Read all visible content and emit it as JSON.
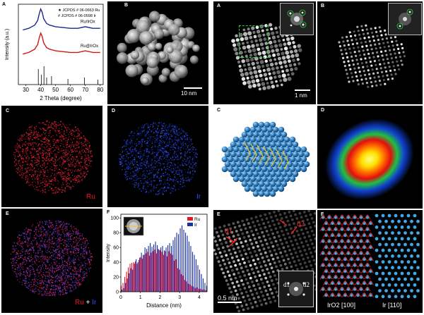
{
  "left": {
    "panelA": {
      "label": "A",
      "ylabel": "Intensity (a.u.)",
      "xlabel": "2 Theta (degree)",
      "legend_ru": "★ JCPDS # 06-0663 Ru",
      "legend_ir": "# JCPDS # 06-0598 Ir",
      "curve_top_label": "Ru/IrOx",
      "curve_bottom_label": "Ru@IrOx",
      "xticks": [
        "30",
        "40",
        "50",
        "60",
        "70",
        "80"
      ]
    },
    "panelB": {
      "label": "B",
      "scale": "10 nm"
    },
    "panelC": {
      "label": "C",
      "element": "Ru"
    },
    "panelD": {
      "label": "D",
      "element": "Ir"
    },
    "panelE": {
      "label": "E",
      "element_ru": "Ru",
      "plus": "+",
      "element_ir": "Ir"
    },
    "panelF": {
      "label": "F",
      "ylabel": "Intensity",
      "xlabel": "Distance (nm)",
      "legend": [
        "Ru",
        "Ir"
      ],
      "yticks": [
        "0",
        "20",
        "40",
        "60",
        "80",
        "100"
      ],
      "xticks": [
        "0",
        "1",
        "2",
        "3",
        "4"
      ]
    }
  },
  "right": {
    "panelA": {
      "label": "A",
      "scale": "1 nm"
    },
    "panelB": {
      "label": "B"
    },
    "panelC": {
      "label": "C"
    },
    "panelD": {
      "label": "D"
    },
    "panelE": {
      "label": "E",
      "d1": "d1",
      "d2": "d2",
      "scale": "0.5 nm",
      "inset_d1": "d1",
      "inset_d2": "d2"
    },
    "panelF": {
      "label": "F",
      "caption_left": "IrO2  [100]",
      "caption_right": "Ir  [110]"
    }
  },
  "chart_data": [
    {
      "type": "line",
      "title": "",
      "xlabel": "2 Theta (degree)",
      "ylabel": "Intensity (a.u.)",
      "xlim": [
        25,
        82
      ],
      "series": [
        {
          "name": "Ru/IrOx",
          "color": "#1a2a8a",
          "x": [
            28,
            32,
            36,
            38,
            39,
            40,
            41,
            42,
            44,
            46,
            50,
            55,
            60,
            65,
            70,
            75,
            80
          ],
          "y": [
            0.68,
            0.7,
            0.74,
            0.8,
            0.88,
            0.94,
            0.9,
            0.82,
            0.76,
            0.74,
            0.72,
            0.71,
            0.7,
            0.7,
            0.72,
            0.7,
            0.7
          ]
        },
        {
          "name": "Ru@IrOx",
          "color": "#d01818",
          "x": [
            28,
            32,
            36,
            38,
            39,
            40,
            41,
            42,
            44,
            46,
            50,
            55,
            60,
            65,
            70,
            75,
            80
          ],
          "y": [
            0.38,
            0.4,
            0.44,
            0.5,
            0.58,
            0.64,
            0.6,
            0.52,
            0.46,
            0.44,
            0.42,
            0.41,
            0.4,
            0.4,
            0.42,
            0.4,
            0.4
          ]
        }
      ],
      "reference_ticks": [
        38.4,
        40.5,
        42.2,
        44.0,
        47.3,
        58.3,
        69.4,
        78.4
      ]
    },
    {
      "type": "bar",
      "title": "",
      "xlabel": "Distance (nm)",
      "ylabel": "Intensity",
      "xlim": [
        0,
        4.4
      ],
      "ylim": [
        0,
        105
      ],
      "x": [
        0.0,
        0.09,
        0.18,
        0.27,
        0.36,
        0.45,
        0.54,
        0.63,
        0.72,
        0.81,
        0.9,
        0.99,
        1.08,
        1.17,
        1.26,
        1.35,
        1.44,
        1.53,
        1.62,
        1.71,
        1.8,
        1.89,
        1.98,
        2.07,
        2.16,
        2.25,
        2.34,
        2.43,
        2.52,
        2.61,
        2.7,
        2.79,
        2.88,
        2.97,
        3.06,
        3.15,
        3.24,
        3.33,
        3.42,
        3.51,
        3.6,
        3.69,
        3.78,
        3.87,
        3.96,
        4.05,
        4.14,
        4.23,
        4.32
      ],
      "series": [
        {
          "name": "Ru",
          "color": "#e8142a",
          "values": [
            8,
            12,
            20,
            27,
            33,
            38,
            39,
            40,
            41,
            38,
            43,
            47,
            45,
            50,
            52,
            54,
            49,
            53,
            55,
            57,
            52,
            58,
            56,
            54,
            50,
            55,
            48,
            55,
            52,
            50,
            42,
            44,
            32,
            30,
            24,
            22,
            16,
            14,
            11,
            10,
            8,
            7,
            5,
            6,
            4,
            4,
            3,
            3,
            2
          ]
        },
        {
          "name": "Ir",
          "color": "#1a2ea8",
          "values": [
            3,
            5,
            12,
            18,
            25,
            32,
            30,
            38,
            44,
            40,
            46,
            53,
            50,
            60,
            58,
            62,
            66,
            61,
            64,
            68,
            63,
            57,
            60,
            62,
            56,
            60,
            63,
            66,
            62,
            70,
            74,
            80,
            78,
            86,
            90,
            84,
            80,
            76,
            68,
            62,
            54,
            50,
            44,
            36,
            30,
            24,
            18,
            12,
            8
          ]
        }
      ]
    }
  ]
}
